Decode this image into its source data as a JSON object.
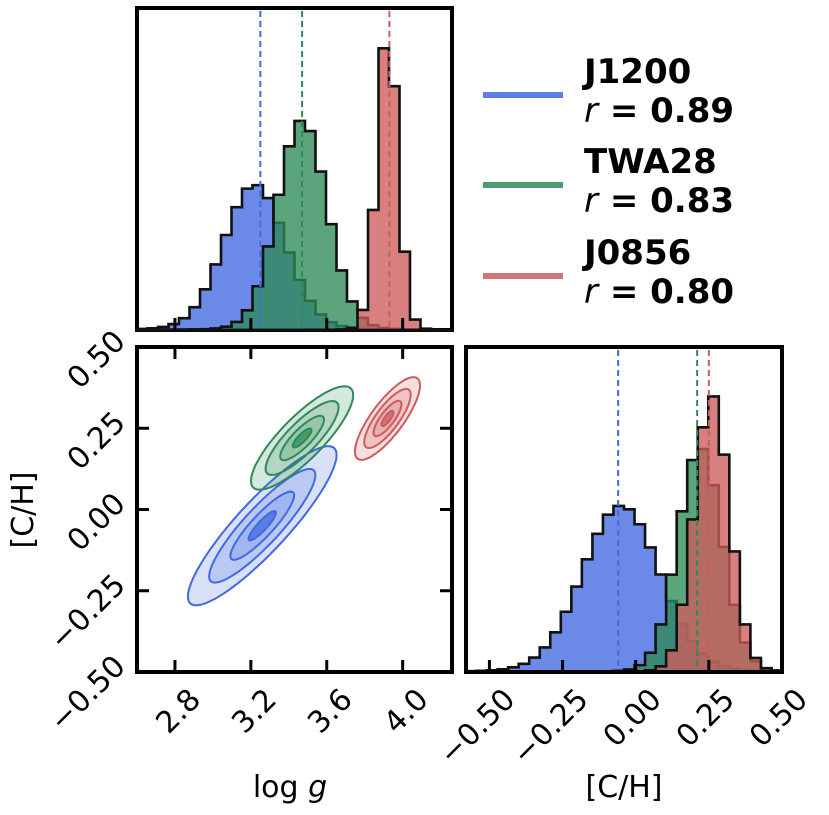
{
  "chart_data": [
    {
      "type": "histogram",
      "panel": "top-left",
      "xlim": [
        2.6,
        4.26
      ],
      "series": [
        {
          "name": "J1200",
          "color": "#4169e1",
          "median": 3.25,
          "center": 3.22,
          "sigma": 0.16,
          "peak": 0.44
        },
        {
          "name": "TWA28",
          "color": "#2e8b57",
          "median": 3.47,
          "center": 3.47,
          "sigma": 0.13,
          "peak": 0.64
        },
        {
          "name": "J0856",
          "color": "#cd5c5c",
          "median": 3.93,
          "center": 3.92,
          "sigma": 0.055,
          "peak": 0.92
        }
      ]
    },
    {
      "type": "contour",
      "panel": "bottom-left",
      "xlabel": "log g",
      "ylabel": "[C/H]",
      "xlim": [
        2.6,
        4.26
      ],
      "ylim": [
        -0.5,
        0.5
      ],
      "xticks": [
        "2.8",
        "3.2",
        "3.6",
        "4.0"
      ],
      "yticks": [
        "−0.50",
        "−0.25",
        "0.00",
        "0.25",
        "0.50"
      ],
      "series": [
        {
          "name": "J1200",
          "color": "#4169e1",
          "center": [
            3.26,
            -0.05
          ],
          "sx": 0.16,
          "sy": 0.1,
          "rho": 0.89
        },
        {
          "name": "TWA28",
          "color": "#2e8b57",
          "center": [
            3.47,
            0.22
          ],
          "sx": 0.11,
          "sy": 0.065,
          "rho": 0.83
        },
        {
          "name": "J0856",
          "color": "#cd5c5c",
          "center": [
            3.92,
            0.28
          ],
          "sx": 0.07,
          "sy": 0.052,
          "rho": 0.8
        }
      ]
    },
    {
      "type": "histogram",
      "panel": "bottom-right",
      "xlabel": "[C/H]",
      "xlim": [
        -0.58,
        0.5
      ],
      "xticks": [
        "−0.50",
        "−0.25",
        "0.00",
        "0.25",
        "0.50"
      ],
      "series": [
        {
          "name": "J1200",
          "color": "#4169e1",
          "median": -0.06,
          "center": -0.05,
          "sigma": 0.13,
          "peak": 0.5
        },
        {
          "name": "TWA28",
          "color": "#2e8b57",
          "median": 0.21,
          "center": 0.22,
          "sigma": 0.075,
          "peak": 0.68
        },
        {
          "name": "J0856",
          "color": "#cd5c5c",
          "median": 0.25,
          "center": 0.26,
          "sigma": 0.06,
          "peak": 0.84
        }
      ]
    }
  ],
  "legend": {
    "entries": [
      {
        "name": "J1200",
        "r_label": "r",
        "r_value": " = 0.89",
        "color": "#4169e1"
      },
      {
        "name": "TWA28",
        "r_label": "r",
        "r_value": " = 0.83",
        "color": "#2e8b57"
      },
      {
        "name": "J0856",
        "r_label": "r",
        "r_value": " = 0.80",
        "color": "#cd5c5c"
      }
    ]
  },
  "labels": {
    "x_logg_main": "log",
    "x_logg_var": " g",
    "x_ch": "[C/H]",
    "y_ch": "[C/H]"
  }
}
